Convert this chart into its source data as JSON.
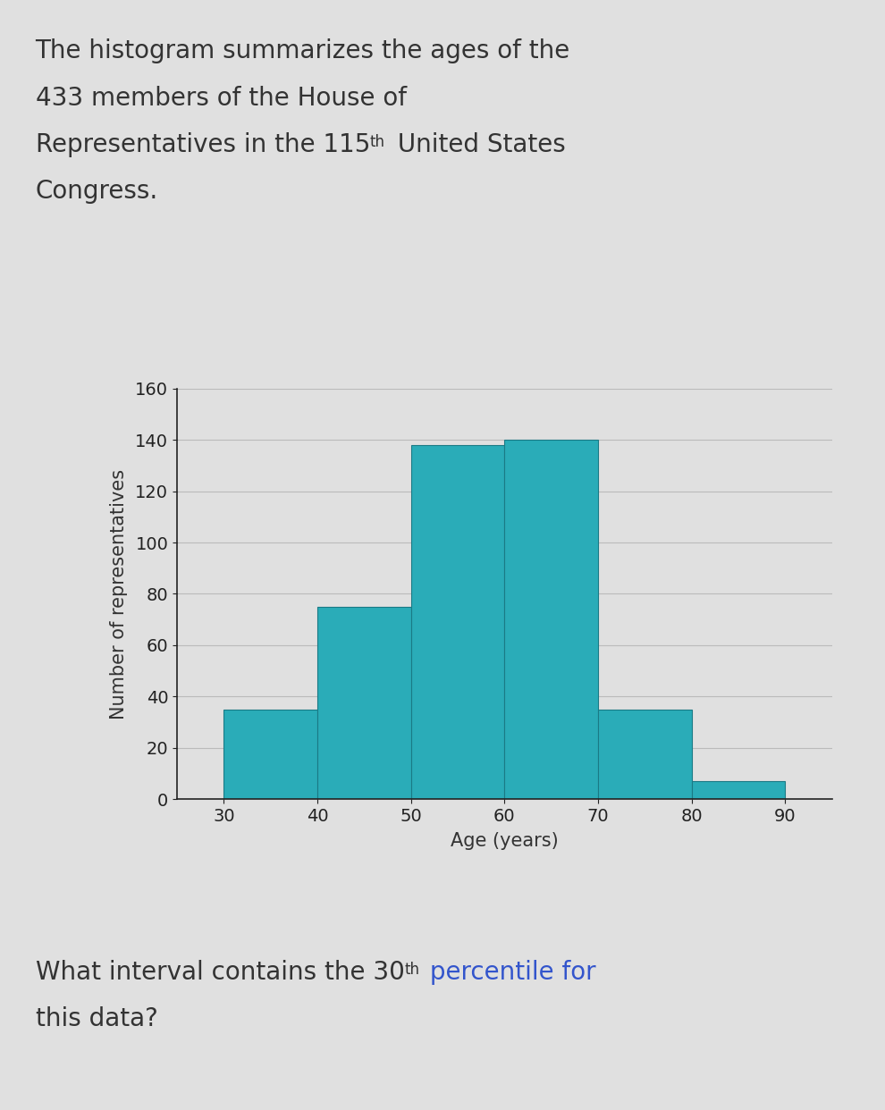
{
  "bar_edges": [
    30,
    40,
    50,
    60,
    70,
    80,
    90
  ],
  "bar_heights": [
    35,
    75,
    138,
    140,
    35,
    7
  ],
  "bar_color": "#2AACB8",
  "bar_edgecolor": "#1a7a85",
  "xlabel": "Age (years)",
  "ylabel": "Number of representatives",
  "ylim": [
    0,
    160
  ],
  "xlim": [
    25,
    95
  ],
  "yticks": [
    0,
    20,
    40,
    60,
    80,
    100,
    120,
    140,
    160
  ],
  "xticks": [
    30,
    40,
    50,
    60,
    70,
    80,
    90
  ],
  "background_color": "#e0e0e0",
  "grid_color": "#bbbbbb",
  "axis_color": "#222222",
  "text_color": "#333333",
  "bar_title_fontsize": 20,
  "axis_label_fontsize": 15,
  "tick_fontsize": 14,
  "question_fontsize": 20,
  "percentile_color": "#3355CC"
}
